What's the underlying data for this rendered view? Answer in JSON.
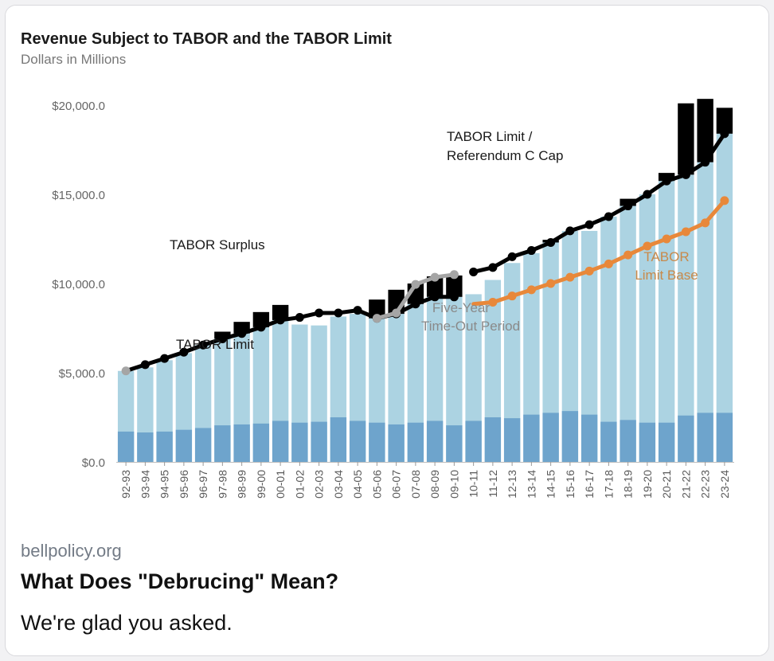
{
  "link_preview": {
    "domain": "bellpolicy.org",
    "title": "What Does \"Debrucing\" Mean?",
    "description": "We're glad you asked."
  },
  "chart_data": {
    "type": "bar",
    "title": "Revenue Subject to TABOR and the TABOR Limit",
    "subtitle": "Dollars in Millions",
    "xlabel": "",
    "ylabel": "",
    "ylim": [
      0,
      20000
    ],
    "y_ticks": [
      "$0.0",
      "$5,000.0",
      "$10,000.0",
      "$15,000.0",
      "$20,000.0"
    ],
    "categories": [
      "92-93",
      "93-94",
      "94-95",
      "95-96",
      "96-97",
      "97-98",
      "98-99",
      "99-00",
      "00-01",
      "01-02",
      "02-03",
      "03-04",
      "04-05",
      "05-06",
      "06-07",
      "07-08",
      "08-09",
      "09-10",
      "10-11",
      "11-12",
      "12-13",
      "13-14",
      "14-15",
      "15-16",
      "16-17",
      "17-18",
      "18-19",
      "19-20",
      "20-21",
      "21-22",
      "22-23",
      "23-24"
    ],
    "bars": {
      "lower": [
        1700,
        1650,
        1700,
        1800,
        1900,
        2050,
        2100,
        2150,
        2300,
        2200,
        2250,
        2500,
        2300,
        2200,
        2100,
        2200,
        2300,
        2050,
        2300,
        2500,
        2450,
        2650,
        2750,
        2850,
        2650,
        2250,
        2350,
        2200,
        2200,
        2600,
        2750,
        2750
      ],
      "total": [
        5100,
        5300,
        5700,
        6100,
        6550,
        7300,
        7850,
        8400,
        8800,
        7700,
        7650,
        8150,
        8300,
        9100,
        9650,
        10000,
        10400,
        10450,
        9400,
        10200,
        11150,
        11700,
        12450,
        12950,
        12950,
        13800,
        14750,
        15050,
        16200,
        20100,
        20350,
        19850
      ]
    },
    "series": [
      {
        "name": "TABOR Limit",
        "values": [
          5100,
          5450,
          5800,
          6150,
          6550,
          6900,
          7200,
          7550,
          7950,
          8100,
          8350,
          8350,
          8500,
          8050,
          8300,
          8850,
          9250,
          9250,
          null,
          null,
          null,
          null,
          null,
          null,
          null,
          null,
          null,
          null,
          null,
          null,
          null,
          null
        ]
      },
      {
        "name": "Five-Year Time-Out Period",
        "values": [
          null,
          null,
          null,
          null,
          null,
          null,
          null,
          null,
          null,
          null,
          null,
          null,
          null,
          8050,
          8350,
          9950,
          10350,
          10500,
          null,
          null,
          null,
          null,
          null,
          null,
          null,
          null,
          null,
          null,
          null,
          null,
          null,
          null
        ]
      },
      {
        "name": "TABOR Limit / Referendum C Cap",
        "values": [
          null,
          null,
          null,
          null,
          null,
          null,
          null,
          null,
          null,
          null,
          null,
          null,
          null,
          null,
          null,
          null,
          null,
          null,
          10650,
          10900,
          11500,
          11850,
          12300,
          12950,
          13300,
          13750,
          14350,
          15000,
          15750,
          16100,
          16800,
          18400
        ]
      },
      {
        "name": "TABOR Limit Base",
        "values": [
          null,
          null,
          null,
          null,
          null,
          null,
          null,
          null,
          null,
          null,
          null,
          null,
          null,
          null,
          null,
          null,
          null,
          null,
          8850,
          8950,
          9300,
          9650,
          10000,
          10350,
          10700,
          11100,
          11600,
          12100,
          12500,
          12900,
          13400,
          14650
        ]
      }
    ],
    "annotations": {
      "surplus": "TABOR Surplus",
      "tabor_limit": "TABOR Limit",
      "five_year_line1": "Five-Year",
      "five_year_line2": "Time-Out Period",
      "cap_line1": "TABOR Limit /",
      "cap_line2": "Referendum C Cap",
      "base_line1": "TABOR",
      "base_line2": "Limit Base"
    },
    "colors": {
      "bar_lower": "#6ea4cc",
      "bar_upper": "#acd3e2",
      "surplus": "#000000",
      "limit_line": "#000000",
      "timeout_line": "#a5a5a5",
      "base_line": "#e8883a",
      "base_label": "#c8894a"
    }
  }
}
